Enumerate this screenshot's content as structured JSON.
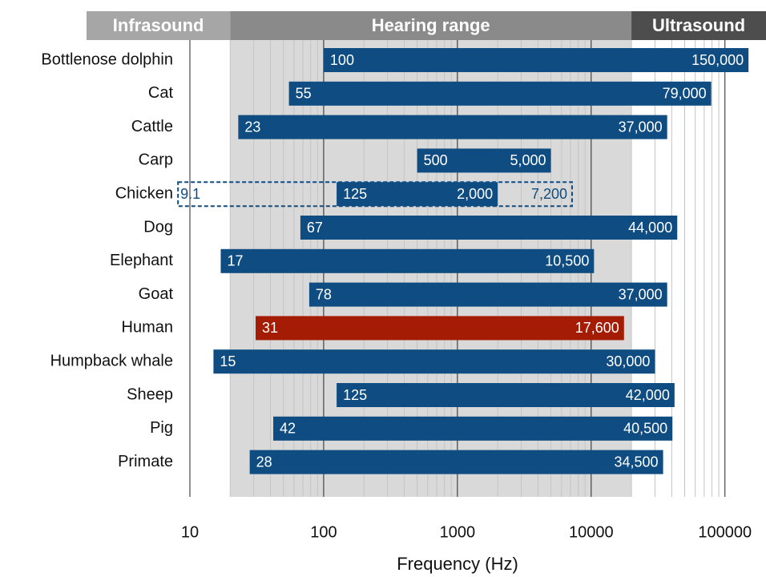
{
  "chart_data": {
    "type": "range_bar",
    "x_label": "Frequency (Hz)",
    "xscale": "log",
    "xlim": [
      10,
      200000
    ],
    "xticks": [
      10,
      100,
      1000,
      10000,
      100000
    ],
    "grid": true,
    "regions": [
      {
        "label": "Infrasound",
        "to": 20,
        "color": "#a6a6a6"
      },
      {
        "label": "Hearing range",
        "from": 20,
        "to": 20000,
        "color": "#8a8a8a",
        "background": "#d9d9d9"
      },
      {
        "label": "Ultrasound",
        "from": 20000,
        "color": "#4d4d4d"
      }
    ],
    "categories": [
      "Bottlenose dolphin",
      "Cat",
      "Cattle",
      "Carp",
      "Chicken",
      "Dog",
      "Elephant",
      "Goat",
      "Human",
      "Humpback whale",
      "Sheep",
      "Pig",
      "Primate"
    ],
    "low": [
      100,
      55,
      23,
      500,
      125,
      67,
      17,
      78,
      31,
      15,
      125,
      42,
      28
    ],
    "high": [
      150000,
      79000,
      37000,
      5000,
      2000,
      44000,
      10500,
      37000,
      17600,
      30000,
      42000,
      40500,
      34500
    ],
    "low_labels": [
      "100",
      "55",
      "23",
      "500",
      "125",
      "67",
      "17",
      "78",
      "31",
      "15",
      "125",
      "42",
      "28"
    ],
    "high_labels": [
      "150,000",
      "79,000",
      "37,000",
      "5,000",
      "2,000",
      "44,000",
      "10,500",
      "37,000",
      "17,600",
      "30,000",
      "42,000",
      "40,500",
      "34,500"
    ],
    "colors": [
      "#0f4c81",
      "#0f4c81",
      "#0f4c81",
      "#0f4c81",
      "#0f4c81",
      "#0f4c81",
      "#0f4c81",
      "#0f4c81",
      "#a51c05",
      "#0f4c81",
      "#0f4c81",
      "#0f4c81",
      "#0f4c81"
    ],
    "dashed_low": [
      null,
      null,
      null,
      null,
      9.1,
      null,
      null,
      null,
      null,
      null,
      null,
      null,
      null
    ],
    "dashed_high": [
      null,
      null,
      null,
      null,
      7200,
      null,
      null,
      null,
      null,
      null,
      null,
      null,
      null
    ],
    "dashed_low_labels": [
      null,
      null,
      null,
      null,
      "9.1",
      null,
      null,
      null,
      null,
      null,
      null,
      null,
      null
    ],
    "dashed_high_labels": [
      null,
      null,
      null,
      null,
      "7,200",
      null,
      null,
      null,
      null,
      null,
      null,
      null,
      null
    ]
  }
}
